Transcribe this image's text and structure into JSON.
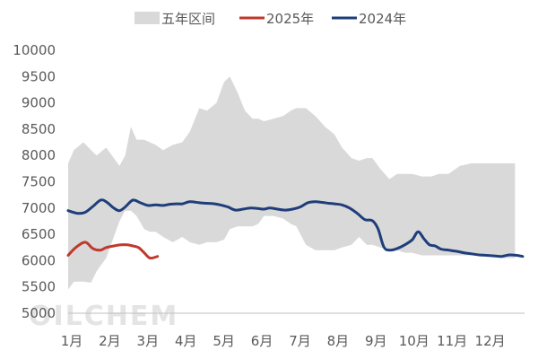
{
  "chart_data": {
    "type": "area",
    "months": [
      "1月",
      "2月",
      "3月",
      "4月",
      "5月",
      "6月",
      "7月",
      "8月",
      "9月",
      "10月",
      "11月",
      "12月"
    ],
    "ylim": [
      5000,
      10000
    ],
    "yticks": [
      5000,
      5500,
      6000,
      6500,
      7000,
      7500,
      8000,
      8500,
      9000,
      9500,
      10000
    ],
    "grid": false,
    "legend_position": "top",
    "watermark": "OILCHEM",
    "band": {
      "name": "五年区间",
      "color": "#d9d9d9",
      "x": [
        1.0,
        1.15,
        1.4,
        1.6,
        1.75,
        2.0,
        2.2,
        2.35,
        2.5,
        2.65,
        2.8,
        3.0,
        3.15,
        3.3,
        3.5,
        3.75,
        4.0,
        4.2,
        4.45,
        4.65,
        4.9,
        5.1,
        5.25,
        5.45,
        5.65,
        5.85,
        6.0,
        6.15,
        6.4,
        6.65,
        6.85,
        7.0,
        7.25,
        7.5,
        7.75,
        8.0,
        8.2,
        8.45,
        8.65,
        8.85,
        9.0,
        9.2,
        9.45,
        9.65,
        9.85,
        10.05,
        10.3,
        10.55,
        10.75,
        11.0,
        11.3,
        11.6,
        11.85,
        12.1,
        12.35,
        12.55,
        12.75
      ],
      "upper": [
        7850,
        8100,
        8250,
        8100,
        8000,
        8150,
        7950,
        7800,
        8000,
        8550,
        8300,
        8300,
        8250,
        8200,
        8100,
        8200,
        8250,
        8450,
        8900,
        8850,
        9000,
        9400,
        9500,
        9200,
        8850,
        8700,
        8700,
        8650,
        8700,
        8750,
        8850,
        8900,
        8900,
        8750,
        8550,
        8400,
        8150,
        7950,
        7900,
        7950,
        7950,
        7750,
        7550,
        7650,
        7650,
        7650,
        7600,
        7600,
        7650,
        7650,
        7800,
        7850,
        7850,
        7850,
        7850,
        7850,
        7850
      ],
      "lower": [
        5450,
        5600,
        5600,
        5580,
        5800,
        6050,
        6450,
        6750,
        6950,
        6950,
        6850,
        6600,
        6550,
        6550,
        6450,
        6350,
        6450,
        6350,
        6300,
        6350,
        6350,
        6400,
        6600,
        6650,
        6650,
        6650,
        6700,
        6850,
        6850,
        6800,
        6700,
        6650,
        6300,
        6200,
        6200,
        6200,
        6250,
        6300,
        6450,
        6300,
        6300,
        6250,
        6200,
        6200,
        6150,
        6150,
        6100,
        6100,
        6100,
        6100,
        6100,
        6100,
        6100,
        6100,
        6050,
        6050,
        6050
      ]
    },
    "series": [
      {
        "name": "2025年",
        "color": "#c0392b",
        "x": [
          1.0,
          1.2,
          1.45,
          1.65,
          1.85,
          2.0,
          2.2,
          2.4,
          2.55,
          2.7,
          2.85,
          3.0,
          3.15,
          3.35
        ],
        "values": [
          6100,
          6250,
          6350,
          6230,
          6200,
          6250,
          6280,
          6300,
          6300,
          6280,
          6250,
          6150,
          6050,
          6080
        ]
      },
      {
        "name": "2024年",
        "color": "#1f3d7a",
        "x": [
          1.0,
          1.25,
          1.45,
          1.65,
          1.85,
          2.0,
          2.2,
          2.35,
          2.5,
          2.7,
          2.9,
          3.1,
          3.3,
          3.5,
          3.65,
          3.85,
          4.0,
          4.2,
          4.45,
          4.65,
          4.85,
          5.0,
          5.2,
          5.4,
          5.6,
          5.8,
          6.0,
          6.15,
          6.3,
          6.5,
          6.7,
          6.9,
          7.1,
          7.3,
          7.5,
          7.65,
          7.85,
          8.0,
          8.2,
          8.4,
          8.6,
          8.8,
          9.0,
          9.15,
          9.3,
          9.45,
          9.65,
          9.85,
          10.05,
          10.2,
          10.35,
          10.5,
          10.65,
          10.8,
          11.0,
          11.2,
          11.4,
          11.6,
          11.8,
          12.0,
          12.2,
          12.4,
          12.6,
          12.8,
          12.95
        ],
        "values": [
          6950,
          6900,
          6920,
          7030,
          7150,
          7120,
          7000,
          6950,
          7020,
          7150,
          7100,
          7050,
          7060,
          7050,
          7070,
          7080,
          7080,
          7120,
          7100,
          7090,
          7080,
          7060,
          7020,
          6960,
          6980,
          7000,
          6990,
          6980,
          7000,
          6980,
          6960,
          6980,
          7020,
          7100,
          7120,
          7110,
          7090,
          7080,
          7060,
          7000,
          6900,
          6780,
          6760,
          6600,
          6260,
          6200,
          6230,
          6300,
          6400,
          6550,
          6420,
          6300,
          6280,
          6220,
          6200,
          6180,
          6150,
          6130,
          6110,
          6100,
          6090,
          6080,
          6110,
          6100,
          6080
        ]
      }
    ]
  }
}
